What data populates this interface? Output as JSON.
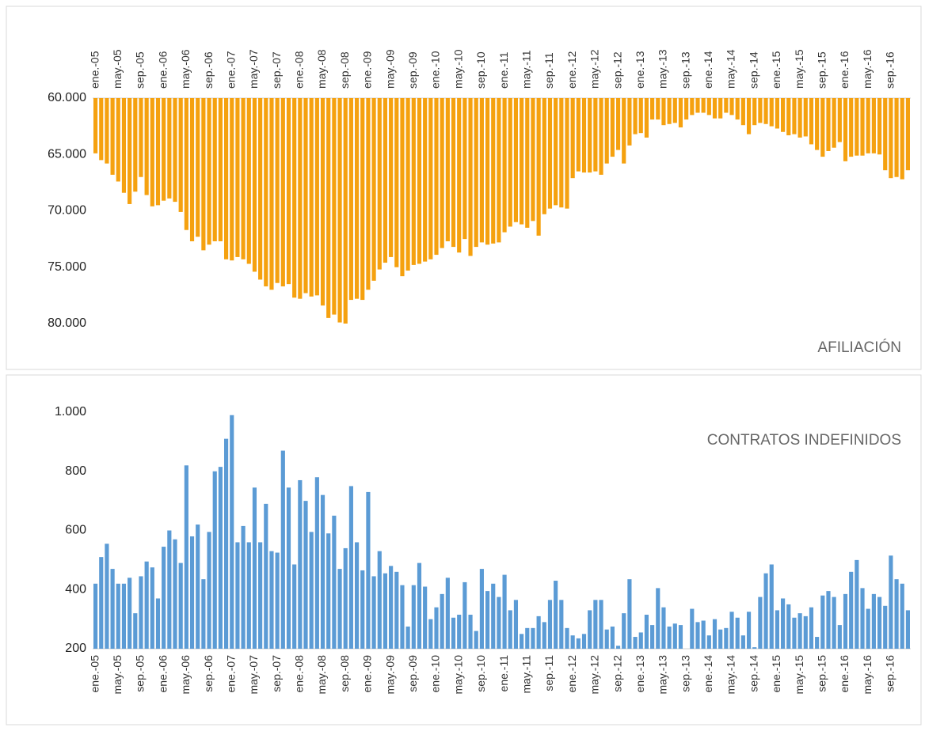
{
  "chart_data": [
    {
      "type": "bar",
      "title": "AFILIACIÓN",
      "y_inverted": true,
      "color": "#f5a10f",
      "categories": [
        "ene.-05",
        null,
        null,
        null,
        "may.-05",
        null,
        null,
        null,
        "sep.-05",
        null,
        null,
        null,
        "ene.-06",
        null,
        null,
        null,
        "may.-06",
        null,
        null,
        null,
        "sep.-06",
        null,
        null,
        null,
        "ene.-07",
        null,
        null,
        null,
        "may.-07",
        null,
        null,
        null,
        "sep.-07",
        null,
        null,
        null,
        "ene.-08",
        null,
        null,
        null,
        "may.-08",
        null,
        null,
        null,
        "sep.-08",
        null,
        null,
        null,
        "ene.-09",
        null,
        null,
        null,
        "may.-09",
        null,
        null,
        null,
        "sep.-09",
        null,
        null,
        null,
        "ene.-10",
        null,
        null,
        null,
        "may.-10",
        null,
        null,
        null,
        "sep.-10",
        null,
        null,
        null,
        "ene.-11",
        null,
        null,
        null,
        "may.-11",
        null,
        null,
        null,
        "sep.-11",
        null,
        null,
        null,
        "ene.-12",
        null,
        null,
        null,
        "may.-12",
        null,
        null,
        null,
        "sep.-12",
        null,
        null,
        null,
        "ene.-13",
        null,
        null,
        null,
        "may.-13",
        null,
        null,
        null,
        "sep.-13",
        null,
        null,
        null,
        "ene.-14",
        null,
        null,
        null,
        "may.-14",
        null,
        null,
        null,
        "sep.-14",
        null,
        null,
        null,
        "ene.-15",
        null,
        null,
        null,
        "may.-15",
        null,
        null,
        null,
        "sep.-15",
        null,
        null,
        null,
        "ene.-16",
        null,
        null,
        null,
        "may.-16",
        null,
        null,
        null,
        "sep.-16",
        null,
        null,
        null
      ],
      "values": [
        64900,
        65500,
        65800,
        66800,
        67400,
        68400,
        69400,
        68300,
        67000,
        68600,
        69600,
        69500,
        69100,
        68900,
        69200,
        70100,
        71700,
        72700,
        72300,
        73500,
        73000,
        72700,
        72700,
        74300,
        74400,
        74100,
        74300,
        74700,
        75400,
        76100,
        76700,
        77000,
        76400,
        76700,
        76500,
        77700,
        77800,
        77300,
        77600,
        77500,
        78400,
        79500,
        79200,
        79900,
        80000,
        77900,
        77800,
        77900,
        77000,
        76200,
        75200,
        74600,
        74100,
        75000,
        75800,
        75300,
        74800,
        74700,
        74500,
        74300,
        73900,
        73300,
        72700,
        73200,
        73700,
        72500,
        74000,
        73200,
        72800,
        73000,
        72900,
        72800,
        71900,
        71400,
        71000,
        71200,
        71500,
        70900,
        72200,
        70300,
        69800,
        69500,
        69700,
        69800,
        67100,
        66500,
        66600,
        66600,
        66500,
        66800,
        65800,
        65200,
        64600,
        65800,
        64200,
        63200,
        63100,
        63500,
        61900,
        61900,
        62400,
        62300,
        62200,
        62600,
        61900,
        61500,
        61300,
        61300,
        61500,
        61800,
        61800,
        61300,
        61500,
        61900,
        62400,
        63200,
        62400,
        62200,
        62300,
        62500,
        62700,
        63000,
        63300,
        63200,
        63500,
        63400,
        64100,
        64600,
        65200,
        64700,
        64400,
        63900,
        65600,
        65200,
        65100,
        65100,
        64900,
        64900,
        65000,
        66400,
        67100,
        67000,
        67200,
        66400
      ],
      "ylim": [
        60000,
        80000
      ],
      "yticks": [
        {
          "value": 60000,
          "label": "60.000"
        },
        {
          "value": 65000,
          "label": "65.000"
        },
        {
          "value": 70000,
          "label": "70.000"
        },
        {
          "value": 75000,
          "label": "75.000"
        },
        {
          "value": 80000,
          "label": "80.000"
        }
      ]
    },
    {
      "type": "bar",
      "title": "CONTRATOS INDEFINIDOS",
      "y_inverted": false,
      "color": "#5b9bd5",
      "categories": [
        "ene.-05",
        null,
        null,
        null,
        "may.-05",
        null,
        null,
        null,
        "sep.-05",
        null,
        null,
        null,
        "ene.-06",
        null,
        null,
        null,
        "may.-06",
        null,
        null,
        null,
        "sep.-06",
        null,
        null,
        null,
        "ene.-07",
        null,
        null,
        null,
        "may.-07",
        null,
        null,
        null,
        "sep.-07",
        null,
        null,
        null,
        "ene.-08",
        null,
        null,
        null,
        "may.-08",
        null,
        null,
        null,
        "sep.-08",
        null,
        null,
        null,
        "ene.-09",
        null,
        null,
        null,
        "may.-09",
        null,
        null,
        null,
        "sep.-09",
        null,
        null,
        null,
        "ene.-10",
        null,
        null,
        null,
        "may.-10",
        null,
        null,
        null,
        "sep.-10",
        null,
        null,
        null,
        "ene.-11",
        null,
        null,
        null,
        "may.-11",
        null,
        null,
        null,
        "sep.-11",
        null,
        null,
        null,
        "ene.-12",
        null,
        null,
        null,
        "may.-12",
        null,
        null,
        null,
        "sep.-12",
        null,
        null,
        null,
        "ene.-13",
        null,
        null,
        null,
        "may.-13",
        null,
        null,
        null,
        "sep.-13",
        null,
        null,
        null,
        "ene.-14",
        null,
        null,
        null,
        "may.-14",
        null,
        null,
        null,
        "sep.-14",
        null,
        null,
        null,
        "ene.-15",
        null,
        null,
        null,
        "may.-15",
        null,
        null,
        null,
        "sep.-15",
        null,
        null,
        null,
        "ene.-16",
        null,
        null,
        null,
        "may.-16",
        null,
        null,
        null,
        "sep.-16",
        null,
        null,
        null
      ],
      "values": [
        420,
        510,
        555,
        470,
        420,
        420,
        440,
        320,
        445,
        495,
        475,
        370,
        545,
        600,
        570,
        490,
        820,
        580,
        620,
        435,
        595,
        800,
        815,
        910,
        990,
        560,
        615,
        560,
        745,
        560,
        690,
        530,
        525,
        870,
        745,
        485,
        770,
        700,
        595,
        780,
        720,
        590,
        650,
        470,
        540,
        750,
        560,
        465,
        730,
        445,
        530,
        455,
        480,
        460,
        415,
        275,
        415,
        490,
        410,
        300,
        340,
        385,
        440,
        305,
        315,
        425,
        315,
        260,
        470,
        395,
        420,
        375,
        450,
        330,
        365,
        250,
        270,
        270,
        310,
        290,
        365,
        430,
        365,
        270,
        245,
        235,
        250,
        330,
        365,
        365,
        265,
        275,
        210,
        320,
        435,
        240,
        255,
        315,
        280,
        405,
        340,
        275,
        285,
        280,
        200,
        335,
        290,
        295,
        245,
        300,
        265,
        270,
        325,
        305,
        245,
        325,
        205,
        375,
        455,
        485,
        330,
        370,
        350,
        305,
        320,
        310,
        340,
        240,
        380,
        395,
        375,
        280,
        385,
        460,
        500,
        405,
        335,
        385,
        375,
        345,
        515,
        435,
        420,
        330
      ],
      "ylim": [
        200,
        1000
      ],
      "yticks": [
        {
          "value": 1000,
          "label": "1.000"
        },
        800,
        600,
        400,
        200
      ]
    }
  ]
}
